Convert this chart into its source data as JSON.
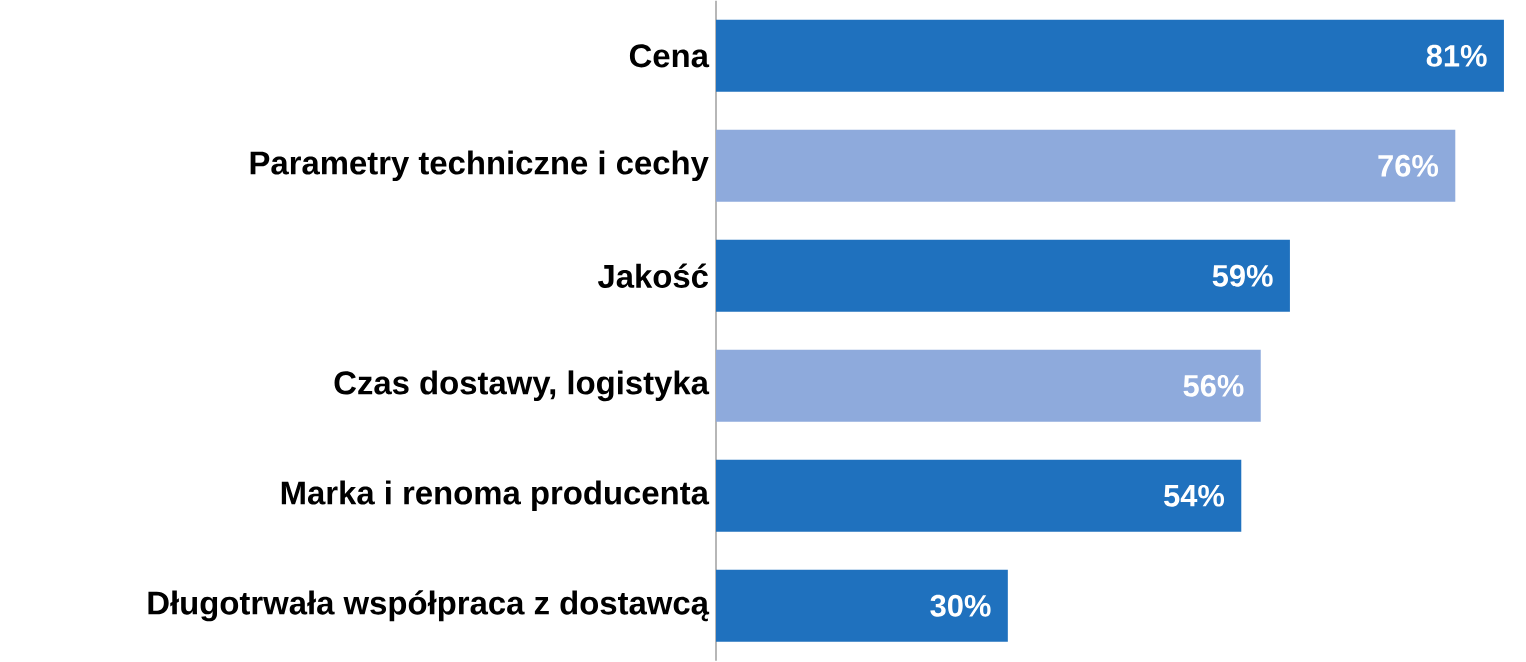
{
  "chart_data": {
    "type": "bar",
    "orientation": "horizontal",
    "categories": [
      "Cena",
      "Parametry techniczne i cechy",
      "Jakość",
      "Czas dostawy, logistyka",
      "Marka i renoma producenta",
      "Długotrwała współpraca z dostawcą"
    ],
    "values": [
      81,
      76,
      59,
      56,
      54,
      30
    ],
    "colors": [
      "#1f71be",
      "#8eaadc",
      "#1f71be",
      "#8eaadc",
      "#1f71be",
      "#1f71be"
    ],
    "value_labels": [
      "81%",
      "76%",
      "59%",
      "56%",
      "54%",
      "30%"
    ]
  }
}
